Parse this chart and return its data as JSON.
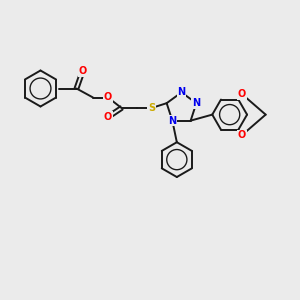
{
  "background_color": "#ebebeb",
  "bond_color": "#1a1a1a",
  "atom_colors": {
    "O": "#ff0000",
    "N": "#0000ee",
    "S": "#ccaa00",
    "C": "#1a1a1a"
  },
  "figsize": [
    3.0,
    3.0
  ],
  "dpi": 100
}
